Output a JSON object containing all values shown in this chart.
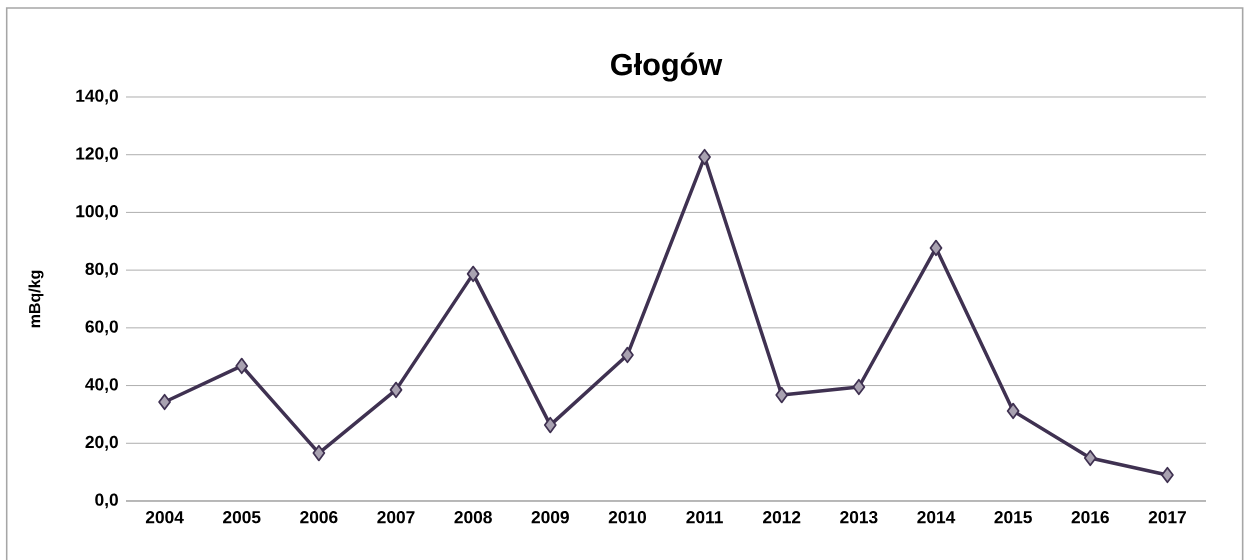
{
  "chart_data": {
    "type": "line",
    "title": "Głogów",
    "ylabel": "mBq/kg",
    "categories": [
      "2004",
      "2005",
      "2006",
      "2007",
      "2008",
      "2009",
      "2010",
      "2011",
      "2012",
      "2013",
      "2014",
      "2015",
      "2016",
      "2017"
    ],
    "series": [
      {
        "color": "#3f3151",
        "values": [
          34.3,
          46.8,
          16.6,
          38.5,
          78.7,
          26.3,
          50.6,
          119.2,
          36.7,
          39.5,
          87.7,
          31.2,
          14.9,
          9.0
        ]
      }
    ],
    "ylim": [
      0,
      140
    ],
    "yticks": [
      {
        "value": 0,
        "label": "0,0"
      },
      {
        "value": 20,
        "label": "20,0"
      },
      {
        "value": 40,
        "label": "40,0"
      },
      {
        "value": 60,
        "label": "60,0"
      },
      {
        "value": 80,
        "label": "80,0"
      },
      {
        "value": 100,
        "label": "100,0"
      },
      {
        "value": 120,
        "label": "120,0"
      },
      {
        "value": 140,
        "label": "140,0"
      }
    ],
    "grid": "y",
    "marker": "diamond",
    "line_style": "solid"
  }
}
